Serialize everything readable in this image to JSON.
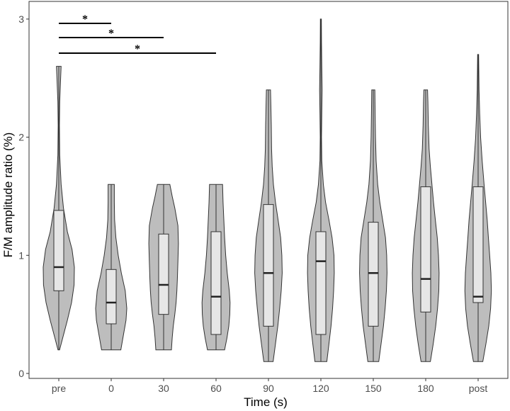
{
  "chart_data": {
    "type": "violin",
    "xlabel": "Time (s)",
    "ylabel": "F/M amplitude ratio (%)",
    "ylim": [
      0,
      3.1
    ],
    "yticks": [
      0,
      1,
      2,
      3
    ],
    "grid": false,
    "legend": "none",
    "colors": {
      "violin": "#bdbdbd",
      "box": "#e6e6e6",
      "outline": "#333333"
    },
    "categories": [
      "pre",
      "0",
      "30",
      "60",
      "90",
      "120",
      "150",
      "180",
      "post"
    ],
    "groups": [
      {
        "category": "pre",
        "min": 0.2,
        "q1": 0.7,
        "median": 0.9,
        "q3": 1.38,
        "max": 2.6,
        "density": [
          [
            0.2,
            0.05
          ],
          [
            0.3,
            0.25
          ],
          [
            0.45,
            0.55
          ],
          [
            0.6,
            0.82
          ],
          [
            0.75,
            0.98
          ],
          [
            0.9,
            1.0
          ],
          [
            1.05,
            0.85
          ],
          [
            1.2,
            0.55
          ],
          [
            1.4,
            0.3
          ],
          [
            1.6,
            0.15
          ],
          [
            1.85,
            0.06
          ],
          [
            2.1,
            0.04
          ],
          [
            2.3,
            0.06
          ],
          [
            2.5,
            0.12
          ],
          [
            2.6,
            0.15
          ]
        ]
      },
      {
        "category": "0",
        "min": 0.2,
        "q1": 0.42,
        "median": 0.6,
        "q3": 0.88,
        "max": 1.6,
        "density": [
          [
            0.2,
            0.62
          ],
          [
            0.3,
            0.75
          ],
          [
            0.45,
            0.95
          ],
          [
            0.55,
            1.0
          ],
          [
            0.7,
            0.9
          ],
          [
            0.85,
            0.65
          ],
          [
            1.0,
            0.45
          ],
          [
            1.15,
            0.3
          ],
          [
            1.3,
            0.22
          ],
          [
            1.45,
            0.2
          ],
          [
            1.6,
            0.2
          ]
        ]
      },
      {
        "category": "30",
        "min": 0.2,
        "q1": 0.5,
        "median": 0.75,
        "q3": 1.18,
        "max": 1.6,
        "density": [
          [
            0.2,
            0.5
          ],
          [
            0.3,
            0.55
          ],
          [
            0.4,
            0.62
          ],
          [
            0.5,
            0.72
          ],
          [
            0.6,
            0.8
          ],
          [
            0.7,
            0.85
          ],
          [
            0.8,
            0.88
          ],
          [
            0.95,
            0.92
          ],
          [
            1.1,
            0.95
          ],
          [
            1.25,
            0.92
          ],
          [
            1.4,
            0.72
          ],
          [
            1.5,
            0.55
          ],
          [
            1.6,
            0.4
          ]
        ]
      },
      {
        "category": "60",
        "min": 0.2,
        "q1": 0.33,
        "median": 0.65,
        "q3": 1.2,
        "max": 1.6,
        "density": [
          [
            0.2,
            0.55
          ],
          [
            0.3,
            0.7
          ],
          [
            0.4,
            0.82
          ],
          [
            0.5,
            0.88
          ],
          [
            0.6,
            0.9
          ],
          [
            0.7,
            0.85
          ],
          [
            0.85,
            0.72
          ],
          [
            1.0,
            0.62
          ],
          [
            1.15,
            0.55
          ],
          [
            1.3,
            0.5
          ],
          [
            1.45,
            0.45
          ],
          [
            1.6,
            0.42
          ]
        ]
      },
      {
        "category": "90",
        "min": 0.1,
        "q1": 0.4,
        "median": 0.85,
        "q3": 1.43,
        "max": 2.4,
        "density": [
          [
            0.1,
            0.3
          ],
          [
            0.25,
            0.45
          ],
          [
            0.4,
            0.6
          ],
          [
            0.55,
            0.72
          ],
          [
            0.7,
            0.82
          ],
          [
            0.85,
            0.88
          ],
          [
            1.0,
            0.86
          ],
          [
            1.15,
            0.78
          ],
          [
            1.3,
            0.62
          ],
          [
            1.45,
            0.45
          ],
          [
            1.6,
            0.32
          ],
          [
            1.75,
            0.24
          ],
          [
            1.9,
            0.2
          ],
          [
            2.1,
            0.18
          ],
          [
            2.3,
            0.15
          ],
          [
            2.4,
            0.13
          ]
        ]
      },
      {
        "category": "120",
        "min": 0.1,
        "q1": 0.33,
        "median": 0.95,
        "q3": 1.2,
        "max": 3.0,
        "density": [
          [
            0.1,
            0.38
          ],
          [
            0.25,
            0.52
          ],
          [
            0.4,
            0.65
          ],
          [
            0.55,
            0.75
          ],
          [
            0.7,
            0.82
          ],
          [
            0.85,
            0.86
          ],
          [
            1.0,
            0.84
          ],
          [
            1.15,
            0.72
          ],
          [
            1.3,
            0.52
          ],
          [
            1.45,
            0.3
          ],
          [
            1.6,
            0.16
          ],
          [
            1.8,
            0.06
          ],
          [
            2.0,
            0.04
          ],
          [
            2.2,
            0.06
          ],
          [
            2.4,
            0.08
          ],
          [
            2.6,
            0.06
          ],
          [
            2.8,
            0.04
          ],
          [
            3.0,
            0.03
          ]
        ]
      },
      {
        "category": "150",
        "min": 0.1,
        "q1": 0.4,
        "median": 0.85,
        "q3": 1.28,
        "max": 2.4,
        "density": [
          [
            0.1,
            0.35
          ],
          [
            0.25,
            0.5
          ],
          [
            0.4,
            0.65
          ],
          [
            0.55,
            0.76
          ],
          [
            0.7,
            0.84
          ],
          [
            0.85,
            0.88
          ],
          [
            1.0,
            0.86
          ],
          [
            1.15,
            0.78
          ],
          [
            1.3,
            0.6
          ],
          [
            1.45,
            0.42
          ],
          [
            1.6,
            0.28
          ],
          [
            1.8,
            0.18
          ],
          [
            2.0,
            0.14
          ],
          [
            2.2,
            0.12
          ],
          [
            2.4,
            0.1
          ]
        ]
      },
      {
        "category": "180",
        "min": 0.1,
        "q1": 0.52,
        "median": 0.8,
        "q3": 1.58,
        "max": 2.4,
        "density": [
          [
            0.1,
            0.3
          ],
          [
            0.25,
            0.48
          ],
          [
            0.4,
            0.64
          ],
          [
            0.55,
            0.76
          ],
          [
            0.7,
            0.84
          ],
          [
            0.85,
            0.86
          ],
          [
            1.0,
            0.82
          ],
          [
            1.15,
            0.74
          ],
          [
            1.3,
            0.62
          ],
          [
            1.45,
            0.5
          ],
          [
            1.6,
            0.4
          ],
          [
            1.75,
            0.3
          ],
          [
            1.9,
            0.22
          ],
          [
            2.1,
            0.17
          ],
          [
            2.3,
            0.14
          ],
          [
            2.4,
            0.12
          ]
        ]
      },
      {
        "category": "post",
        "min": 0.1,
        "q1": 0.6,
        "median": 0.65,
        "q3": 1.58,
        "max": 2.7,
        "density": [
          [
            0.1,
            0.3
          ],
          [
            0.25,
            0.5
          ],
          [
            0.4,
            0.68
          ],
          [
            0.55,
            0.8
          ],
          [
            0.7,
            0.85
          ],
          [
            0.85,
            0.82
          ],
          [
            1.0,
            0.74
          ],
          [
            1.15,
            0.66
          ],
          [
            1.3,
            0.58
          ],
          [
            1.45,
            0.48
          ],
          [
            1.6,
            0.38
          ],
          [
            1.8,
            0.26
          ],
          [
            2.0,
            0.16
          ],
          [
            2.2,
            0.1
          ],
          [
            2.4,
            0.06
          ],
          [
            2.6,
            0.04
          ],
          [
            2.7,
            0.03
          ]
        ]
      }
    ],
    "significance": [
      {
        "from": "pre",
        "to": "0",
        "label": "*"
      },
      {
        "from": "pre",
        "to": "30",
        "label": "*"
      },
      {
        "from": "pre",
        "to": "60",
        "label": "*"
      }
    ]
  }
}
